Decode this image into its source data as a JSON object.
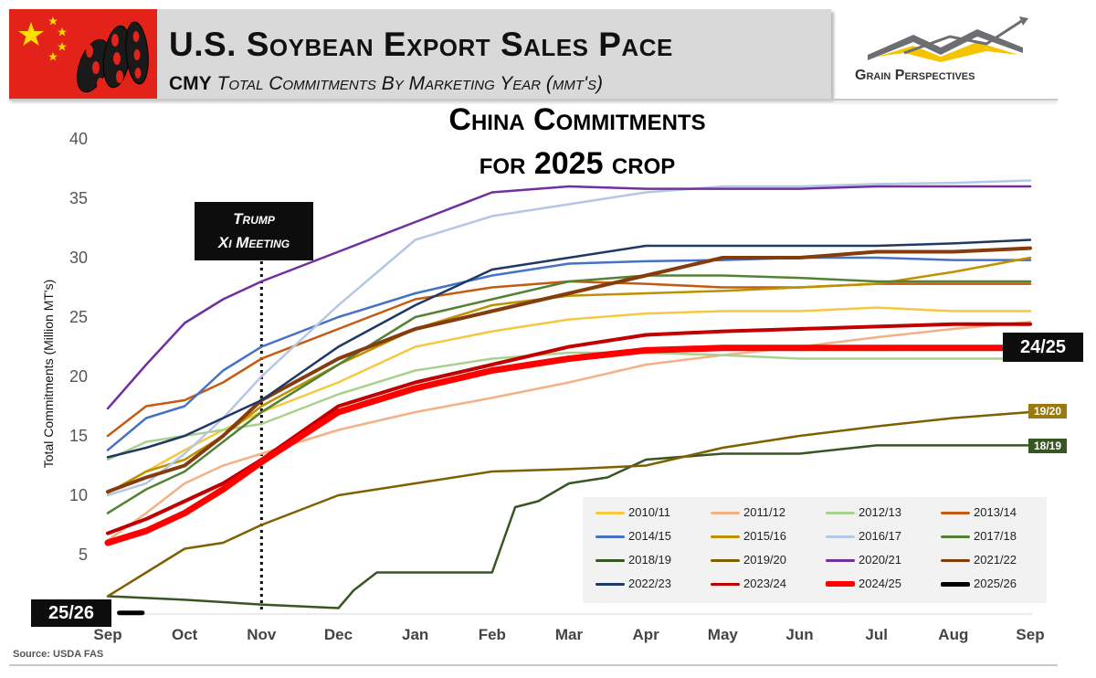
{
  "header": {
    "title": "U.S. Soybean Export Sales Pace",
    "subtitle_bold": "CMY",
    "subtitle_italic": "Total Commitments By Marketing Year (mmt's)",
    "brand": "Grain Perspectives"
  },
  "source": "Source: USDA FAS",
  "annotations": {
    "meeting": [
      "Trump",
      "Xi Meeting"
    ],
    "end_labels": [
      "24/25",
      "19/20",
      "18/19",
      "25/26"
    ]
  },
  "colors": {
    "2010/11": "#f5c842",
    "2011/12": "#f4b183",
    "2012/13": "#a9d18e",
    "2013/14": "#c55a11",
    "2014/15": "#4472c4",
    "2015/16": "#bf9000",
    "2016/17": "#b4c7e7",
    "2017/18": "#548235",
    "2018/19": "#375623",
    "2019/20": "#7f6000",
    "2020/21": "#7030a0",
    "2021/22": "#843c0c",
    "2022/23": "#1f3864",
    "2023/24": "#c00000",
    "2024/25": "#ff0000",
    "2025/26": "#000000"
  },
  "chart_data": {
    "type": "line",
    "title": "China Commitments for 2025 crop",
    "title_lines": [
      "China Commitments",
      "for 2025 crop"
    ],
    "xlabel": "",
    "ylabel": "Total Commitments (Million MT's)",
    "x_ticks": [
      "Sep",
      "Oct",
      "Nov",
      "Dec",
      "Jan",
      "Feb",
      "Mar",
      "Apr",
      "May",
      "Jun",
      "Jul",
      "Aug",
      "Sep"
    ],
    "y_ticks": [
      5,
      10,
      15,
      20,
      25,
      30,
      35,
      40
    ],
    "ylim": [
      0,
      40
    ],
    "x_unit": "months since September 1 (0 = Sep, 12 = next Sep)",
    "meeting_x": 2.0,
    "series": [
      {
        "name": "2010/11",
        "x": [
          0,
          0.5,
          1,
          1.5,
          2,
          3,
          4,
          5,
          6,
          7,
          8,
          9,
          10,
          11,
          12
        ],
        "y": [
          10.2,
          12.0,
          13.8,
          15.5,
          17.0,
          19.5,
          22.5,
          23.8,
          24.8,
          25.3,
          25.5,
          25.5,
          25.8,
          25.5,
          25.5
        ]
      },
      {
        "name": "2011/12",
        "x": [
          0,
          0.5,
          1,
          1.5,
          2,
          3,
          4,
          5,
          6,
          7,
          8,
          9,
          10,
          11,
          12
        ],
        "y": [
          6.2,
          8.5,
          11.0,
          12.5,
          13.5,
          15.5,
          17.0,
          18.2,
          19.5,
          21.0,
          21.8,
          22.5,
          23.3,
          24.0,
          24.6
        ]
      },
      {
        "name": "2012/13",
        "x": [
          0,
          0.5,
          1,
          1.5,
          2,
          3,
          4,
          5,
          6,
          7,
          8,
          9,
          10,
          11,
          12
        ],
        "y": [
          13.0,
          14.5,
          15.0,
          15.5,
          16.0,
          18.5,
          20.5,
          21.5,
          22.0,
          22.0,
          21.8,
          21.5,
          21.5,
          21.5,
          21.5
        ]
      },
      {
        "name": "2013/14",
        "x": [
          0,
          0.5,
          1,
          1.5,
          2,
          3,
          4,
          5,
          6,
          7,
          8,
          9,
          10,
          11,
          12
        ],
        "y": [
          15.0,
          17.5,
          18.0,
          19.5,
          21.5,
          24.0,
          26.5,
          27.5,
          28.0,
          27.8,
          27.5,
          27.5,
          27.8,
          27.8,
          27.8
        ]
      },
      {
        "name": "2014/15",
        "x": [
          0,
          0.5,
          1,
          1.5,
          2,
          3,
          4,
          5,
          6,
          7,
          8,
          9,
          10,
          11,
          12
        ],
        "y": [
          13.8,
          16.5,
          17.5,
          20.5,
          22.5,
          25.0,
          27.0,
          28.5,
          29.5,
          29.7,
          29.8,
          30.0,
          30.0,
          29.8,
          29.8
        ]
      },
      {
        "name": "2015/16",
        "x": [
          0,
          0.5,
          1,
          1.5,
          2,
          3,
          4,
          5,
          6,
          7,
          8,
          9,
          10,
          11,
          12
        ],
        "y": [
          10.2,
          12.0,
          13.0,
          15.0,
          17.5,
          21.0,
          24.0,
          26.0,
          26.8,
          27.0,
          27.2,
          27.5,
          27.8,
          28.8,
          30.0
        ]
      },
      {
        "name": "2016/17",
        "x": [
          0,
          0.5,
          1,
          1.5,
          2,
          3,
          4,
          5,
          6,
          7,
          8,
          9,
          10,
          11,
          12
        ],
        "y": [
          10.0,
          11.0,
          13.5,
          16.5,
          20.0,
          26.0,
          31.5,
          33.5,
          34.5,
          35.5,
          36.0,
          36.0,
          36.2,
          36.3,
          36.5
        ]
      },
      {
        "name": "2017/18",
        "x": [
          0,
          0.5,
          1,
          1.5,
          2,
          3,
          4,
          5,
          6,
          7,
          8,
          9,
          10,
          11,
          12
        ],
        "y": [
          8.5,
          10.5,
          12.0,
          14.5,
          17.0,
          21.0,
          25.0,
          26.5,
          28.0,
          28.5,
          28.5,
          28.3,
          28.0,
          28.0,
          28.0
        ]
      },
      {
        "name": "2018/19",
        "x": [
          0,
          1,
          2,
          3,
          3.2,
          3.5,
          4,
          4.5,
          5,
          5.3,
          5.6,
          6,
          6.5,
          7,
          8,
          9,
          10,
          11,
          12
        ],
        "y": [
          1.5,
          1.2,
          0.8,
          0.5,
          2.0,
          3.5,
          3.5,
          3.5,
          3.5,
          9.0,
          9.5,
          11.0,
          11.5,
          13.0,
          13.5,
          13.5,
          14.2,
          14.2,
          14.2
        ]
      },
      {
        "name": "2019/20",
        "x": [
          0,
          0.5,
          1,
          1.5,
          2,
          3,
          4,
          5,
          6,
          7,
          8,
          9,
          10,
          11,
          12
        ],
        "y": [
          1.5,
          3.5,
          5.5,
          6.0,
          7.5,
          10.0,
          11.0,
          12.0,
          12.2,
          12.5,
          14.0,
          15.0,
          15.8,
          16.5,
          17.0
        ]
      },
      {
        "name": "2020/21",
        "x": [
          0,
          0.5,
          1,
          1.5,
          2,
          3,
          4,
          5,
          6,
          7,
          8,
          9,
          10,
          11,
          12
        ],
        "y": [
          17.3,
          21.0,
          24.5,
          26.5,
          28.0,
          30.5,
          33.0,
          35.5,
          36.0,
          35.8,
          35.8,
          35.8,
          36.0,
          36.0,
          36.0
        ]
      },
      {
        "name": "2021/22",
        "x": [
          0,
          0.5,
          1,
          1.5,
          2,
          3,
          4,
          5,
          6,
          7,
          8,
          9,
          10,
          11,
          12
        ],
        "y": [
          10.3,
          11.5,
          12.5,
          15.0,
          18.0,
          21.5,
          24.0,
          25.5,
          27.0,
          28.5,
          30.0,
          30.0,
          30.5,
          30.5,
          30.8
        ]
      },
      {
        "name": "2022/23",
        "x": [
          0,
          0.5,
          1,
          1.5,
          2,
          3,
          4,
          5,
          6,
          7,
          8,
          9,
          10,
          11,
          12
        ],
        "y": [
          13.2,
          14.0,
          15.0,
          16.5,
          18.0,
          22.5,
          26.0,
          29.0,
          30.0,
          31.0,
          31.0,
          31.0,
          31.0,
          31.2,
          31.5
        ]
      },
      {
        "name": "2023/24",
        "x": [
          0,
          0.5,
          1,
          1.5,
          2,
          3,
          4,
          5,
          6,
          7,
          8,
          9,
          10,
          11,
          12
        ],
        "y": [
          6.8,
          8.0,
          9.5,
          11.0,
          13.0,
          17.5,
          19.5,
          21.0,
          22.5,
          23.5,
          23.8,
          24.0,
          24.2,
          24.4,
          24.4
        ]
      },
      {
        "name": "2024/25",
        "x": [
          0,
          0.5,
          1,
          1.5,
          2,
          3,
          4,
          5,
          6,
          7,
          8,
          9,
          10,
          11,
          12
        ],
        "y": [
          6.0,
          7.0,
          8.5,
          10.5,
          12.8,
          17.0,
          19.0,
          20.5,
          21.5,
          22.2,
          22.4,
          22.4,
          22.4,
          22.4,
          22.4
        ]
      },
      {
        "name": "2025/26",
        "x": [
          0.15,
          0.45
        ],
        "y": [
          0.1,
          0.1
        ]
      }
    ]
  }
}
